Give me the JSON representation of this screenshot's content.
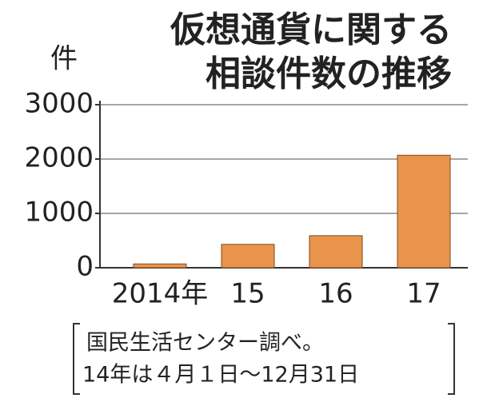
{
  "chart_data": {
    "type": "bar",
    "title": [
      "仮想通貨に関する",
      "相談件数の推移"
    ],
    "y_label": "件",
    "categories": [
      "2014年",
      "15",
      "16",
      "17"
    ],
    "values": [
      70,
      430,
      590,
      2070
    ],
    "color": "#e8944a",
    "ylim": [
      0,
      3000
    ],
    "yticks": [
      0,
      1000,
      2000,
      3000
    ],
    "grid": true,
    "note": [
      "国民生活センター調べ。",
      "14年は４月１日～12月31日"
    ]
  }
}
